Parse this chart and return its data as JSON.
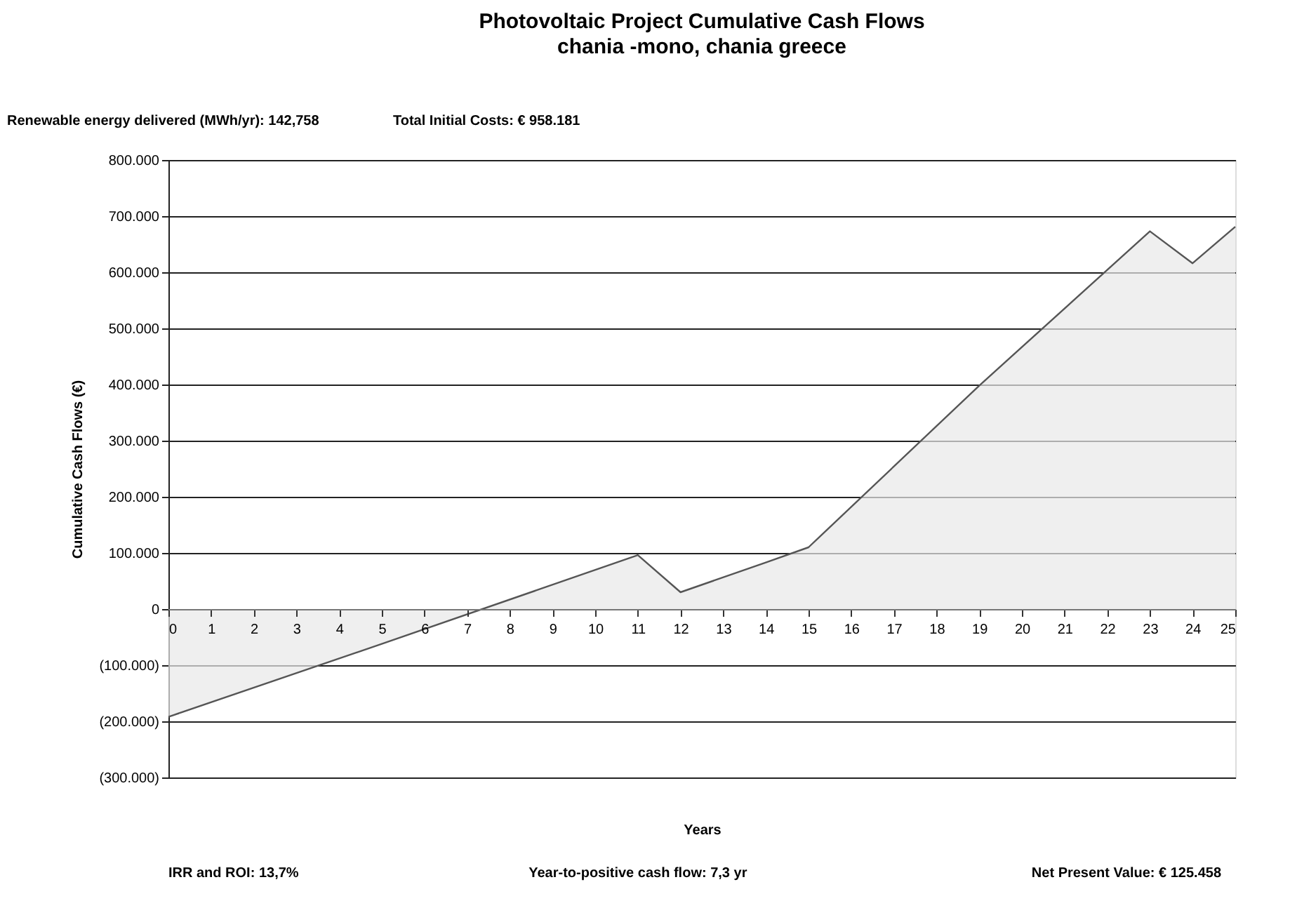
{
  "chart_data": {
    "type": "area",
    "title": "Photovoltaic Project Cumulative Cash Flows",
    "subtitle": "chania -mono, chania greece",
    "xlabel": "Years",
    "ylabel": "Cumulative Cash Flows (€)",
    "annotations": [
      "Renewable energy delivered (MWh/yr): 142,758",
      "Total Initial Costs:      €      958.181",
      "IRR and ROI:  13,7%",
      "Year-to-positive cash flow: 7,3 yr",
      "Net Present Value:  € 125.458"
    ],
    "x": [
      0,
      5,
      11,
      12,
      14,
      15,
      19,
      23,
      24,
      25
    ],
    "series": [
      {
        "color": "#e8e8e8",
        "values": [
          -192000,
          -62000,
          96000,
          30000,
          83000,
          110000,
          398000,
          673000,
          616000,
          681000
        ]
      }
    ],
    "xlim": [
      0,
      25
    ],
    "xticks": [
      0,
      1,
      2,
      3,
      4,
      5,
      6,
      7,
      8,
      9,
      10,
      11,
      12,
      13,
      14,
      15,
      16,
      17,
      18,
      19,
      20,
      21,
      22,
      23,
      24,
      25
    ],
    "ylim": [
      -300000,
      800000
    ],
    "yticks": [
      {
        "value": -300000,
        "label": "(300.000)"
      },
      {
        "value": -200000,
        "label": "(200.000)"
      },
      {
        "value": -100000,
        "label": "(100.000)"
      },
      0,
      {
        "value": 100000,
        "label": "100.000"
      },
      {
        "value": 200000,
        "label": "200.000"
      },
      {
        "value": 300000,
        "label": "300.000"
      },
      {
        "value": 400000,
        "label": "400.000"
      },
      {
        "value": 500000,
        "label": "500.000"
      },
      {
        "value": 600000,
        "label": "600.000"
      },
      {
        "value": 700000,
        "label": "700.000"
      },
      {
        "value": 800000,
        "label": "800.000"
      }
    ],
    "grid": "y"
  }
}
